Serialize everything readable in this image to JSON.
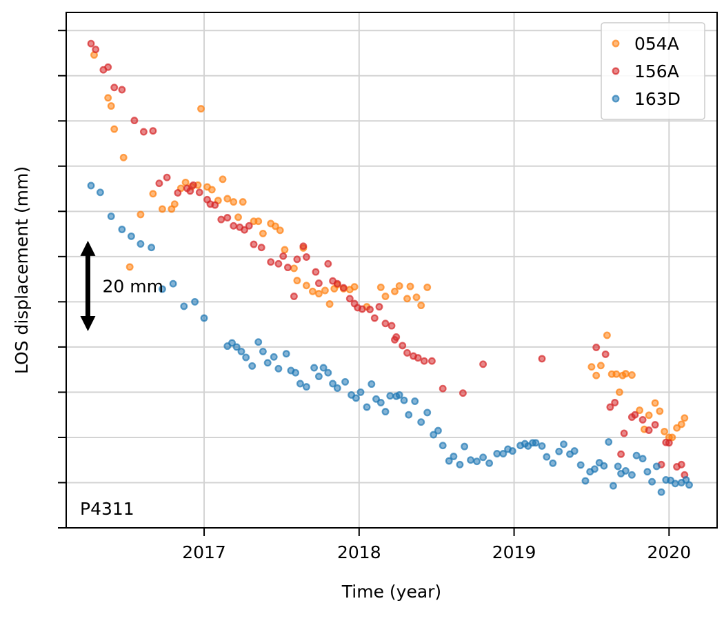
{
  "chart_data": {
    "type": "scatter",
    "xlabel": "Time (year)",
    "ylabel": "LOS displacement (mm)",
    "xlim": [
      2016.11,
      2020.31
    ],
    "ylim": [
      -105,
      9
    ],
    "x_ticks": [
      2017,
      2018,
      2019,
      2020
    ],
    "x_tick_labels": [
      "2017",
      "2018",
      "2019",
      "2020"
    ],
    "y_ticks": [
      5,
      -5,
      -15,
      -25,
      -35,
      -45,
      -55,
      -65,
      -75,
      -85,
      -95,
      -105
    ],
    "grid": true,
    "legend_position": "top-right",
    "station_label": "P4311",
    "scale_bar": {
      "label": "20 mm",
      "x": 2016.25,
      "y_top": -41.5,
      "y_bottom": -61.5
    },
    "series": [
      {
        "name": "054A",
        "color": "#ff7f0e",
        "points": [
          [
            2016.29,
            -0.4
          ],
          [
            2016.38,
            -9.9
          ],
          [
            2016.4,
            -11.7
          ],
          [
            2016.42,
            -16.8
          ],
          [
            2016.48,
            -23.1
          ],
          [
            2016.52,
            -47.3
          ],
          [
            2016.59,
            -35.7
          ],
          [
            2016.67,
            -31.1
          ],
          [
            2016.73,
            -34.5
          ],
          [
            2016.79,
            -34.5
          ],
          [
            2016.81,
            -33.4
          ],
          [
            2016.85,
            -29.9
          ],
          [
            2016.88,
            -28.6
          ],
          [
            2016.92,
            -29.5
          ],
          [
            2016.96,
            -29.2
          ],
          [
            2016.98,
            -12.3
          ],
          [
            2017.02,
            -29.6
          ],
          [
            2017.05,
            -30.2
          ],
          [
            2017.09,
            -32.6
          ],
          [
            2017.12,
            -27.9
          ],
          [
            2017.15,
            -32.2
          ],
          [
            2017.19,
            -32.9
          ],
          [
            2017.22,
            -36.3
          ],
          [
            2017.25,
            -32.9
          ],
          [
            2017.32,
            -37.2
          ],
          [
            2017.35,
            -37.2
          ],
          [
            2017.38,
            -39.9
          ],
          [
            2017.43,
            -37.7
          ],
          [
            2017.46,
            -38.3
          ],
          [
            2017.49,
            -39.2
          ],
          [
            2017.52,
            -43.5
          ],
          [
            2017.58,
            -47.6
          ],
          [
            2017.6,
            -50.3
          ],
          [
            2017.64,
            -43.1
          ],
          [
            2017.66,
            -51.4
          ],
          [
            2017.7,
            -52.7
          ],
          [
            2017.74,
            -53.2
          ],
          [
            2017.78,
            -52.5
          ],
          [
            2017.81,
            -55.5
          ],
          [
            2017.84,
            -52.1
          ],
          [
            2017.86,
            -51.2
          ],
          [
            2017.9,
            -52.1
          ],
          [
            2017.94,
            -52.3
          ],
          [
            2017.97,
            -51.7
          ],
          [
            2018.05,
            -56.1
          ],
          [
            2018.14,
            -51.8
          ],
          [
            2018.17,
            -53.8
          ],
          [
            2018.23,
            -52.7
          ],
          [
            2018.26,
            -51.5
          ],
          [
            2018.31,
            -54.3
          ],
          [
            2018.33,
            -51.6
          ],
          [
            2018.37,
            -54.0
          ],
          [
            2018.4,
            -55.8
          ],
          [
            2018.44,
            -51.8
          ],
          [
            2019.5,
            -69.4
          ],
          [
            2019.53,
            -71.3
          ],
          [
            2019.56,
            -69.1
          ],
          [
            2019.6,
            -62.4
          ],
          [
            2019.63,
            -71.0
          ],
          [
            2019.66,
            -71.0
          ],
          [
            2019.68,
            -75.0
          ],
          [
            2019.7,
            -71.3
          ],
          [
            2019.72,
            -70.9
          ],
          [
            2019.76,
            -71.2
          ],
          [
            2019.81,
            -79.0
          ],
          [
            2019.84,
            -83.2
          ],
          [
            2019.87,
            -80.1
          ],
          [
            2019.91,
            -77.4
          ],
          [
            2019.94,
            -79.2
          ],
          [
            2019.97,
            -83.7
          ],
          [
            2020.0,
            -85.0
          ],
          [
            2020.02,
            -85.0
          ],
          [
            2020.05,
            -82.9
          ],
          [
            2020.08,
            -82.1
          ],
          [
            2020.1,
            -80.7
          ]
        ]
      },
      {
        "name": "156A",
        "color": "#d62728",
        "points": [
          [
            2016.27,
            2.1
          ],
          [
            2016.3,
            0.8
          ],
          [
            2016.35,
            -3.7
          ],
          [
            2016.38,
            -3.1
          ],
          [
            2016.42,
            -7.6
          ],
          [
            2016.47,
            -8.1
          ],
          [
            2016.55,
            -14.9
          ],
          [
            2016.61,
            -17.4
          ],
          [
            2016.67,
            -17.2
          ],
          [
            2016.71,
            -28.8
          ],
          [
            2016.76,
            -27.5
          ],
          [
            2016.83,
            -30.9
          ],
          [
            2016.89,
            -29.9
          ],
          [
            2016.91,
            -30.5
          ],
          [
            2016.93,
            -29.2
          ],
          [
            2016.97,
            -30.8
          ],
          [
            2017.02,
            -32.4
          ],
          [
            2017.04,
            -33.4
          ],
          [
            2017.07,
            -33.6
          ],
          [
            2017.11,
            -36.8
          ],
          [
            2017.15,
            -36.4
          ],
          [
            2017.19,
            -38.2
          ],
          [
            2017.23,
            -38.5
          ],
          [
            2017.26,
            -39.1
          ],
          [
            2017.29,
            -38.2
          ],
          [
            2017.32,
            -42.3
          ],
          [
            2017.37,
            -43.0
          ],
          [
            2017.43,
            -46.2
          ],
          [
            2017.48,
            -46.6
          ],
          [
            2017.51,
            -44.9
          ],
          [
            2017.54,
            -47.4
          ],
          [
            2017.58,
            -53.8
          ],
          [
            2017.6,
            -45.6
          ],
          [
            2017.64,
            -42.7
          ],
          [
            2017.66,
            -45.1
          ],
          [
            2017.72,
            -48.4
          ],
          [
            2017.74,
            -50.9
          ],
          [
            2017.8,
            -46.6
          ],
          [
            2017.83,
            -50.4
          ],
          [
            2017.86,
            -51.0
          ],
          [
            2017.9,
            -51.9
          ],
          [
            2017.94,
            -54.3
          ],
          [
            2017.97,
            -55.4
          ],
          [
            2017.99,
            -56.3
          ],
          [
            2018.02,
            -56.6
          ],
          [
            2018.07,
            -56.7
          ],
          [
            2018.1,
            -58.6
          ],
          [
            2018.13,
            -56.1
          ],
          [
            2018.17,
            -59.8
          ],
          [
            2018.21,
            -60.3
          ],
          [
            2018.23,
            -63.4
          ],
          [
            2018.24,
            -62.8
          ],
          [
            2018.28,
            -64.7
          ],
          [
            2018.31,
            -66.3
          ],
          [
            2018.35,
            -67.0
          ],
          [
            2018.38,
            -67.4
          ],
          [
            2018.42,
            -68.1
          ],
          [
            2018.47,
            -68.1
          ],
          [
            2018.54,
            -74.2
          ],
          [
            2018.67,
            -75.2
          ],
          [
            2018.8,
            -68.8
          ],
          [
            2019.18,
            -67.6
          ],
          [
            2019.53,
            -65.1
          ],
          [
            2019.59,
            -66.6
          ],
          [
            2019.62,
            -78.3
          ],
          [
            2019.65,
            -77.3
          ],
          [
            2019.69,
            -88.7
          ],
          [
            2019.71,
            -84.1
          ],
          [
            2019.76,
            -80.5
          ],
          [
            2019.78,
            -80.0
          ],
          [
            2019.83,
            -81.1
          ],
          [
            2019.87,
            -83.4
          ],
          [
            2019.91,
            -82.2
          ],
          [
            2019.95,
            -91.0
          ],
          [
            2019.98,
            -86.1
          ],
          [
            2020.0,
            -86.2
          ],
          [
            2020.05,
            -91.5
          ],
          [
            2020.08,
            -91.0
          ],
          [
            2020.1,
            -93.3
          ]
        ]
      },
      {
        "name": "163D",
        "color": "#1f77b4",
        "points": [
          [
            2016.27,
            -29.3
          ],
          [
            2016.33,
            -30.8
          ],
          [
            2016.4,
            -36.1
          ],
          [
            2016.47,
            -39.0
          ],
          [
            2016.53,
            -40.5
          ],
          [
            2016.59,
            -42.2
          ],
          [
            2016.66,
            -43.0
          ],
          [
            2016.73,
            -52.2
          ],
          [
            2016.8,
            -51.0
          ],
          [
            2016.87,
            -56.0
          ],
          [
            2016.94,
            -55.0
          ],
          [
            2017.0,
            -58.6
          ],
          [
            2017.15,
            -64.8
          ],
          [
            2017.18,
            -64.1
          ],
          [
            2017.21,
            -65.0
          ],
          [
            2017.24,
            -66.0
          ],
          [
            2017.27,
            -67.3
          ],
          [
            2017.31,
            -69.2
          ],
          [
            2017.35,
            -63.9
          ],
          [
            2017.38,
            -66.0
          ],
          [
            2017.41,
            -68.5
          ],
          [
            2017.45,
            -67.2
          ],
          [
            2017.48,
            -69.8
          ],
          [
            2017.53,
            -66.5
          ],
          [
            2017.56,
            -70.2
          ],
          [
            2017.59,
            -70.7
          ],
          [
            2017.62,
            -73.1
          ],
          [
            2017.66,
            -73.8
          ],
          [
            2017.71,
            -69.6
          ],
          [
            2017.74,
            -71.5
          ],
          [
            2017.77,
            -69.6
          ],
          [
            2017.8,
            -70.7
          ],
          [
            2017.83,
            -73.1
          ],
          [
            2017.86,
            -74.1
          ],
          [
            2017.91,
            -72.7
          ],
          [
            2017.95,
            -75.6
          ],
          [
            2017.98,
            -76.3
          ],
          [
            2018.01,
            -75.0
          ],
          [
            2018.05,
            -78.3
          ],
          [
            2018.08,
            -73.2
          ],
          [
            2018.11,
            -76.5
          ],
          [
            2018.14,
            -77.3
          ],
          [
            2018.17,
            -79.3
          ],
          [
            2018.2,
            -75.8
          ],
          [
            2018.24,
            -75.9
          ],
          [
            2018.26,
            -75.6
          ],
          [
            2018.29,
            -76.8
          ],
          [
            2018.32,
            -80.0
          ],
          [
            2018.36,
            -77.0
          ],
          [
            2018.4,
            -81.6
          ],
          [
            2018.44,
            -79.5
          ],
          [
            2018.48,
            -84.4
          ],
          [
            2018.51,
            -83.5
          ],
          [
            2018.54,
            -86.8
          ],
          [
            2018.58,
            -90.2
          ],
          [
            2018.61,
            -89.2
          ],
          [
            2018.65,
            -91.0
          ],
          [
            2018.68,
            -87.0
          ],
          [
            2018.72,
            -90.0
          ],
          [
            2018.76,
            -90.3
          ],
          [
            2018.8,
            -89.4
          ],
          [
            2018.84,
            -90.7
          ],
          [
            2018.89,
            -88.6
          ],
          [
            2018.93,
            -88.6
          ],
          [
            2018.96,
            -87.6
          ],
          [
            2018.99,
            -88.0
          ],
          [
            2019.04,
            -86.8
          ],
          [
            2019.07,
            -86.4
          ],
          [
            2019.09,
            -86.9
          ],
          [
            2019.12,
            -86.2
          ],
          [
            2019.14,
            -86.2
          ],
          [
            2019.18,
            -86.9
          ],
          [
            2019.21,
            -89.3
          ],
          [
            2019.25,
            -90.7
          ],
          [
            2019.29,
            -88.1
          ],
          [
            2019.32,
            -86.5
          ],
          [
            2019.36,
            -88.7
          ],
          [
            2019.39,
            -88.0
          ],
          [
            2019.43,
            -91.1
          ],
          [
            2019.46,
            -94.6
          ],
          [
            2019.49,
            -92.6
          ],
          [
            2019.52,
            -92.0
          ],
          [
            2019.55,
            -90.6
          ],
          [
            2019.58,
            -91.3
          ],
          [
            2019.61,
            -86.0
          ],
          [
            2019.64,
            -95.7
          ],
          [
            2019.67,
            -91.4
          ],
          [
            2019.69,
            -93.0
          ],
          [
            2019.72,
            -92.4
          ],
          [
            2019.76,
            -93.3
          ],
          [
            2019.79,
            -89.0
          ],
          [
            2019.83,
            -89.7
          ],
          [
            2019.86,
            -92.6
          ],
          [
            2019.89,
            -94.8
          ],
          [
            2019.92,
            -91.4
          ],
          [
            2019.95,
            -97.1
          ],
          [
            2019.98,
            -94.4
          ],
          [
            2020.01,
            -94.5
          ],
          [
            2020.04,
            -95.2
          ],
          [
            2020.08,
            -95.0
          ],
          [
            2020.11,
            -94.4
          ],
          [
            2020.13,
            -95.5
          ]
        ]
      }
    ]
  }
}
